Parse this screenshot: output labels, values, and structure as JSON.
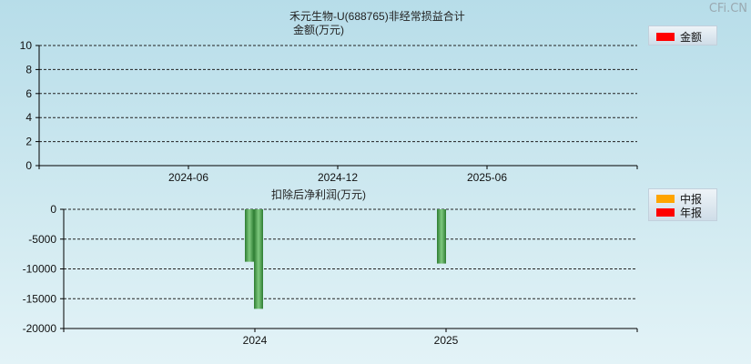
{
  "watermark": "CFi.CN",
  "colors": {
    "grid": "#222222",
    "bar_dark": "#2e7d32",
    "bar_light": "#7fc97f",
    "legend_red": "#ff0000",
    "legend_orange": "#ffa500"
  },
  "chart_data": [
    {
      "type": "bar",
      "title": "禾元生物-U(688765)非经常损益合计",
      "subtitle": "金额(万元)",
      "ylim": [
        0,
        10
      ],
      "yticks": [
        0,
        2,
        4,
        6,
        8,
        10
      ],
      "xticks": [
        "2024-06",
        "2024-12",
        "2025-06"
      ],
      "legend": [
        {
          "name": "金额",
          "color": "#ff0000"
        }
      ],
      "legend_position": "top-right",
      "grid": true,
      "series": [
        {
          "name": "金额",
          "values": []
        }
      ]
    },
    {
      "type": "bar",
      "title": "扣除后净利润(万元)",
      "ylim": [
        -20000,
        0
      ],
      "yticks": [
        0,
        -5000,
        -10000,
        -15000,
        -20000
      ],
      "xticks": [
        "2024",
        "2025"
      ],
      "legend": [
        {
          "name": "中报",
          "color": "#ffa500"
        },
        {
          "name": "年报",
          "color": "#ff0000"
        }
      ],
      "legend_position": "top-right",
      "grid": true,
      "series": [
        {
          "name": "中报",
          "x": [
            "2024-06",
            "2025-06"
          ],
          "values": [
            -8800,
            -9100
          ]
        },
        {
          "name": "年报",
          "x": [
            "2024-12"
          ],
          "values": [
            -16700
          ]
        }
      ]
    }
  ]
}
